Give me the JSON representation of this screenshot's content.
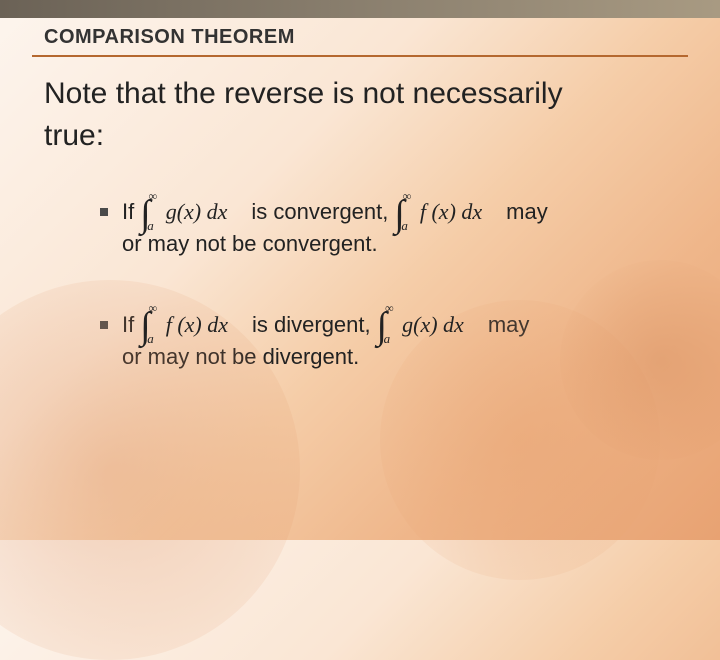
{
  "header": {
    "title": "COMPARISON THEOREM",
    "bar_gradient": [
      "#6b6256",
      "#8a7f6e",
      "#a89a82"
    ],
    "divider_color": "#b5682f"
  },
  "subtitle_line1": "Note that the reverse is not necessarily",
  "subtitle_line2": "true:",
  "bullets": [
    {
      "pre": "If",
      "integral1": {
        "lower": "a",
        "upper": "∞",
        "integrand": "g(x) dx"
      },
      "mid": "is convergent,",
      "integral2": {
        "lower": "a",
        "upper": "∞",
        "integrand": "f (x) dx"
      },
      "post": "may",
      "line2": "or may not be convergent."
    },
    {
      "pre": "If",
      "integral1": {
        "lower": "a",
        "upper": "∞",
        "integrand": "f (x) dx"
      },
      "mid": "is divergent,",
      "integral2": {
        "lower": "a",
        "upper": "∞",
        "integrand": "g(x) dx"
      },
      "post": "may",
      "line2": "or may not be divergent."
    }
  ],
  "style": {
    "background_gradient": [
      "#fdf5ee",
      "#fae6d4",
      "#f5cda8",
      "#efb68a",
      "#e8a272"
    ],
    "title_fontsize": 20,
    "subtitle_fontsize": 30,
    "bullet_fontsize": 22,
    "text_color": "#222222",
    "bullet_marker_color": "#4a4a4a",
    "math_font": "Times New Roman"
  }
}
